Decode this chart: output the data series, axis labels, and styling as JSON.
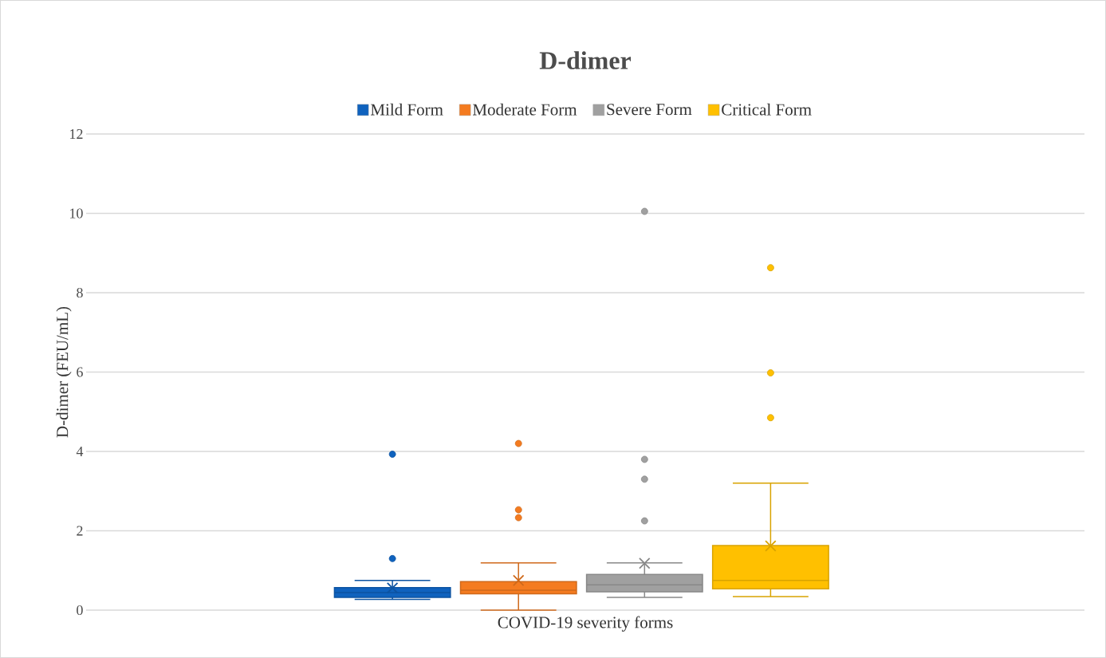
{
  "chart_data": {
    "type": "box",
    "title": "D-dimer",
    "xlabel": "COVID-19 severity forms",
    "ylabel": "D-dimer (FEU/mL)",
    "categories": [
      null
    ],
    "series": [
      {
        "name": "Mild Form",
        "color": "#0f62be",
        "boxes": [
          {
            "low": 0.27,
            "q1": 0.32,
            "median": 0.44,
            "q3": 0.57,
            "high": 0.75,
            "mean": 0.56,
            "outliers": [
              3.93,
              1.3
            ]
          }
        ]
      },
      {
        "name": "Moderate Form",
        "color": "#f47b20",
        "boxes": [
          {
            "low": 0.0,
            "q1": 0.41,
            "median": 0.5,
            "q3": 0.72,
            "high": 1.19,
            "mean": 0.75,
            "outliers": [
              4.2,
              2.53,
              2.33
            ]
          }
        ]
      },
      {
        "name": "Severe Form",
        "color": "#a0a0a0",
        "boxes": [
          {
            "low": 0.32,
            "q1": 0.46,
            "median": 0.64,
            "q3": 0.9,
            "high": 1.19,
            "mean": 1.18,
            "outliers": [
              10.05,
              3.8,
              3.3,
              2.25
            ]
          }
        ]
      },
      {
        "name": "Critical Form",
        "color": "#ffc000",
        "boxes": [
          {
            "low": 0.34,
            "q1": 0.54,
            "median": 0.75,
            "q3": 1.63,
            "high": 3.2,
            "mean": 1.62,
            "outliers": [
              8.63,
              5.98,
              4.85
            ]
          }
        ]
      }
    ],
    "ylim": [
      0,
      12
    ],
    "yticks": [
      0,
      2,
      4,
      6,
      8,
      10,
      12
    ],
    "grid": "y",
    "legend": "top"
  }
}
